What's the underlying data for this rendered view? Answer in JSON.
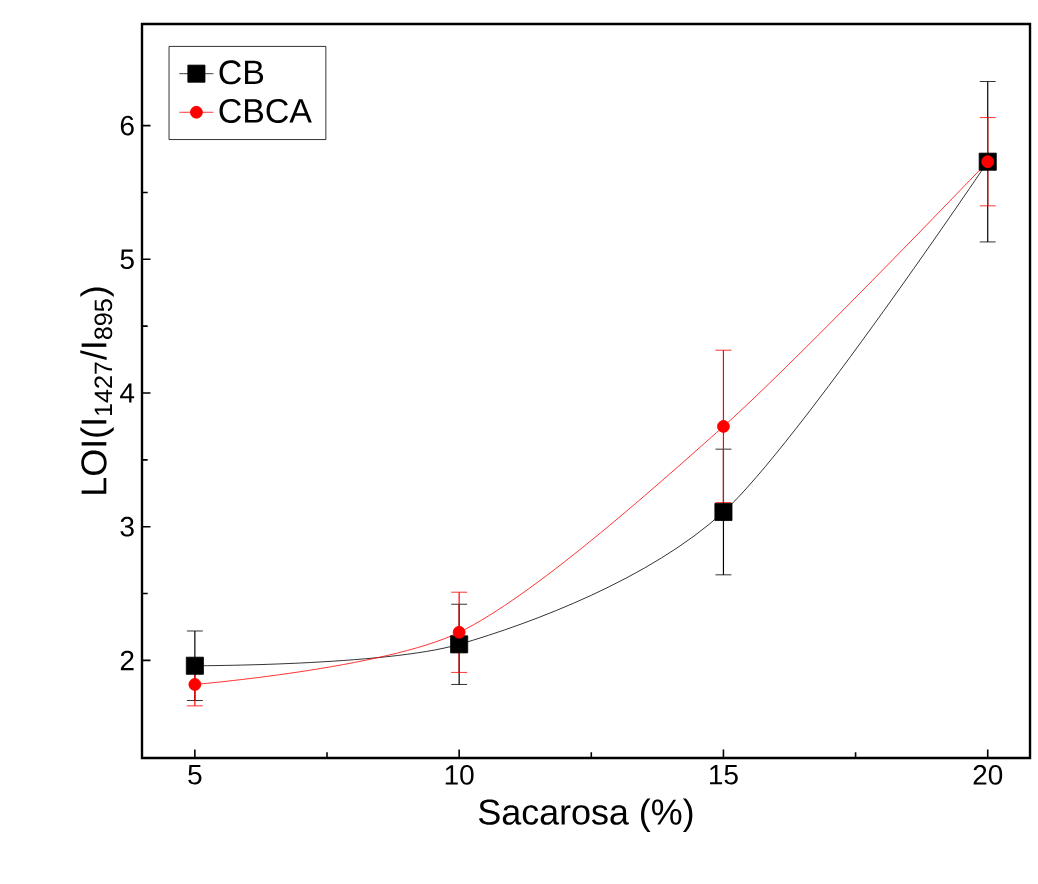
{
  "chart_data": {
    "type": "line",
    "xlabel": "Sacarosa (%)",
    "ylabel": "LOI(I$_{1427}$/I$_{895}$)",
    "x": [
      5,
      10,
      15,
      20
    ],
    "series": [
      {
        "name": "CB",
        "color": "#000000",
        "marker": "square",
        "values": [
          1.96,
          2.12,
          3.11,
          5.73
        ],
        "errors": [
          0.26,
          0.3,
          0.47,
          0.6
        ]
      },
      {
        "name": "CBCA",
        "color": "#ff0000",
        "marker": "circle",
        "values": [
          1.82,
          2.21,
          3.75,
          5.73
        ],
        "errors": [
          0.16,
          0.3,
          0.57,
          0.33
        ]
      }
    ],
    "xlim": [
      4,
      20.8
    ],
    "ylim": [
      1.27,
      6.76
    ],
    "xticks": [
      5,
      10,
      15,
      20
    ],
    "yticks": [
      2,
      3,
      4,
      5,
      6
    ],
    "grid": false,
    "legend": "top left",
    "line_style": "solid"
  }
}
